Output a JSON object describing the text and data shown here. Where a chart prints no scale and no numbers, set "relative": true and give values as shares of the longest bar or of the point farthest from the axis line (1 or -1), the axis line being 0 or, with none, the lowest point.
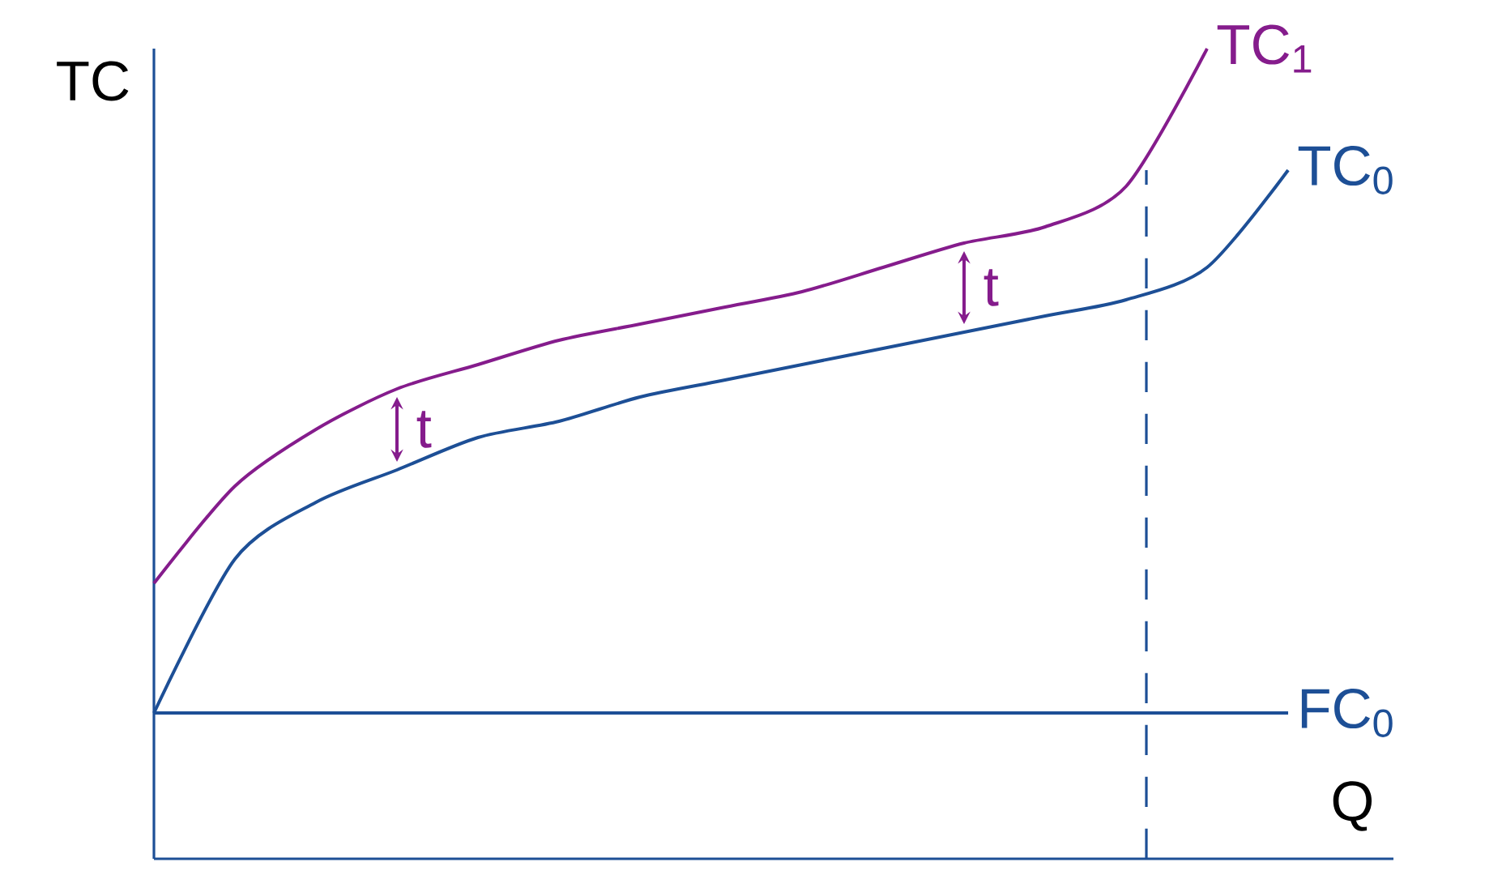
{
  "chart_data": {
    "type": "line",
    "relative": true,
    "ylabel": "TC",
    "xlabel": "Q",
    "categories": [
      null,
      null,
      null,
      null,
      null,
      null,
      null,
      null,
      null,
      null,
      null,
      null,
      null,
      null,
      null
    ],
    "series": [
      {
        "name": "TC$_{1}$",
        "color": "#851c8c",
        "values": [
          0.34,
          0.46,
          0.53,
          0.58,
          0.61,
          0.64,
          0.66,
          0.68,
          0.7,
          0.73,
          0.76,
          0.78,
          0.83,
          1.0,
          null
        ]
      },
      {
        "name": "TC$_{0}$",
        "color": "#1d4f96",
        "values": [
          0.18,
          0.37,
          0.44,
          0.48,
          0.52,
          0.54,
          0.57,
          0.59,
          0.61,
          0.63,
          0.65,
          0.67,
          0.69,
          0.73,
          0.85
        ]
      },
      {
        "name": "FC$_{0}$",
        "color": "#1d4f96",
        "values": [
          0.18,
          0.18,
          0.18,
          0.18,
          0.18,
          0.18,
          0.18,
          0.18,
          0.18,
          0.18,
          0.18,
          0.18,
          0.18,
          0.18,
          0.18
        ]
      }
    ],
    "annotations": [
      "t",
      "t"
    ]
  }
}
